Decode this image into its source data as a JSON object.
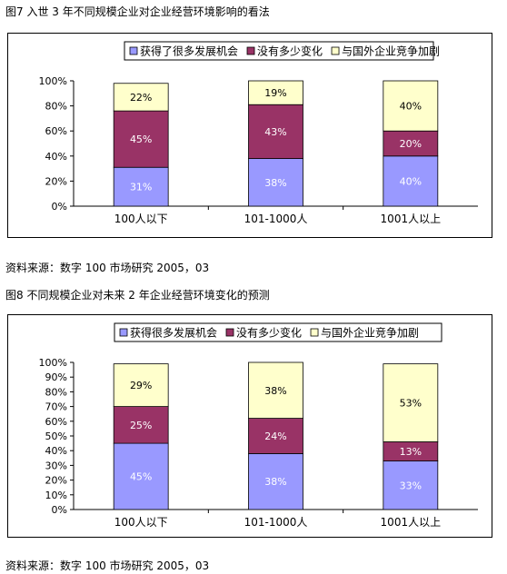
{
  "colors": {
    "series1": "#9999ff",
    "series2": "#993366",
    "series3": "#ffffcc",
    "bar_stroke": "#000000",
    "axis": "#000000"
  },
  "chart_data": [
    {
      "type": "bar",
      "stacked": "percent",
      "caption": "图7  入世 3 年不同规模企业对企业经营环境影响的看法",
      "source": "资料来源：数字 100 市场研究  2005，03",
      "categories": [
        "100人以下",
        "101-1000人",
        "1001人以上"
      ],
      "yticks": [
        "0%",
        "20%",
        "40%",
        "60%",
        "80%",
        "100%"
      ],
      "ylim": [
        0,
        100
      ],
      "legend_position": "top",
      "series": [
        {
          "name": "获得了很多发展机会",
          "values": [
            31,
            38,
            40
          ]
        },
        {
          "name": "没有多少变化",
          "values": [
            45,
            43,
            20
          ]
        },
        {
          "name": "与国外企业竞争加剧",
          "values": [
            22,
            19,
            40
          ]
        }
      ],
      "labels": [
        [
          "31%",
          "38%",
          "40%"
        ],
        [
          "45%",
          "43%",
          "20%"
        ],
        [
          "22%",
          "19%",
          "40%"
        ]
      ]
    },
    {
      "type": "bar",
      "stacked": "percent",
      "caption": "图8 不同规模企业对未来 2 年企业经营环境变化的预测",
      "source": "资料来源：数字 100 市场研究  2005，03",
      "categories": [
        "100人以下",
        "101-1000人",
        "1001人以上"
      ],
      "yticks": [
        "0%",
        "10%",
        "20%",
        "30%",
        "40%",
        "50%",
        "60%",
        "70%",
        "80%",
        "90%",
        "100%"
      ],
      "ylim": [
        0,
        100
      ],
      "legend_position": "top",
      "series": [
        {
          "name": "获得很多发展机会",
          "values": [
            45,
            38,
            33
          ]
        },
        {
          "name": "没有多少变化",
          "values": [
            25,
            24,
            13
          ]
        },
        {
          "name": "与国外企业竞争加剧",
          "values": [
            29,
            38,
            53
          ]
        }
      ],
      "labels": [
        [
          "45%",
          "38%",
          "33%"
        ],
        [
          "25%",
          "24%",
          "13%"
        ],
        [
          "29%",
          "38%",
          "53%"
        ]
      ]
    }
  ]
}
